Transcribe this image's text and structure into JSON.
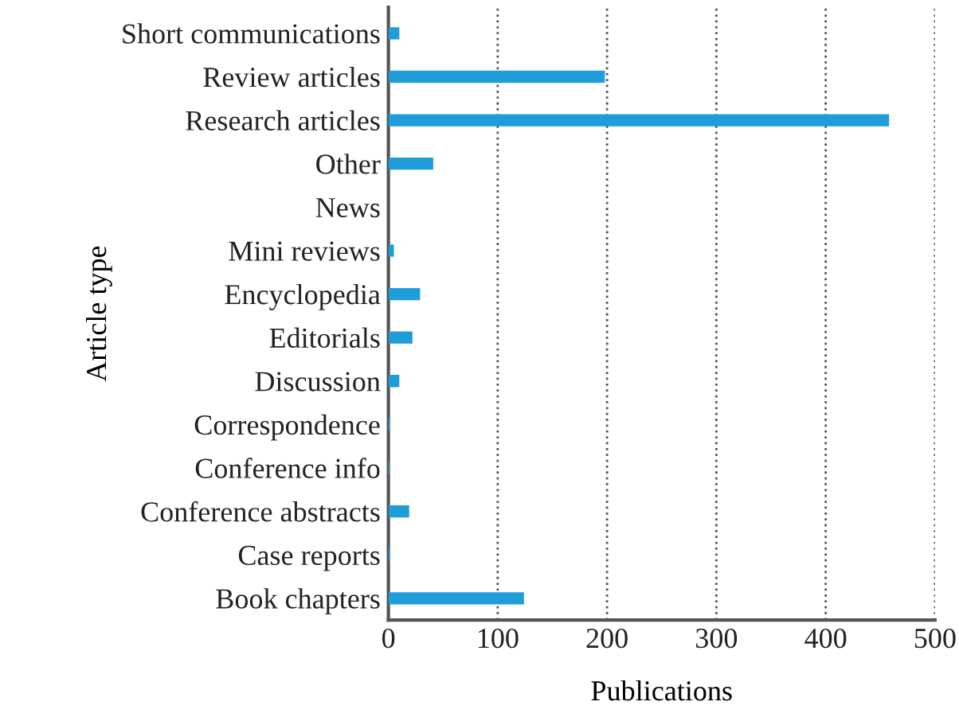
{
  "chart_data": {
    "type": "bar",
    "orientation": "horizontal",
    "xlabel": "Publications",
    "ylabel": "Article type",
    "categories": [
      "Short communications",
      "Review articles",
      "Research articles",
      "Other",
      "News",
      "Mini reviews",
      "Encyclopedia",
      "Editorials",
      "Discussion",
      "Correspondence",
      "Conference info",
      "Conference abstracts",
      "Case reports",
      "Book chapters"
    ],
    "values": [
      10,
      198,
      458,
      41,
      0,
      5,
      29,
      22,
      10,
      1,
      1,
      19,
      1,
      124
    ],
    "color": "#1e9dd8",
    "xlim": [
      0,
      500
    ],
    "xticks": [
      0,
      100,
      200,
      300,
      400,
      500
    ],
    "grid": "x",
    "line_style": "dotted"
  }
}
